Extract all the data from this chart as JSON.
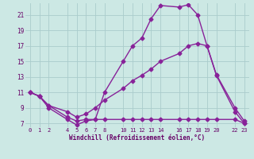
{
  "xlabel": "Windchill (Refroidissement éolien,°C)",
  "bg_color": "#cce8e4",
  "grid_color": "#aacccc",
  "line_color": "#882299",
  "xlim": [
    -0.5,
    23.5
  ],
  "ylim": [
    6.5,
    22.5
  ],
  "yticks": [
    7,
    9,
    11,
    13,
    15,
    17,
    19,
    21
  ],
  "xtick_labels": [
    "0",
    "1",
    "2",
    "4",
    "5",
    "6",
    "7",
    "8",
    "10",
    "11",
    "12",
    "13",
    "14",
    "16",
    "17",
    "18",
    "19",
    "20",
    "22",
    "23"
  ],
  "xtick_positions": [
    0,
    1,
    2,
    4,
    5,
    6,
    7,
    8,
    10,
    11,
    12,
    13,
    14,
    16,
    17,
    18,
    19,
    20,
    22,
    23
  ],
  "line1_x": [
    0,
    1,
    2,
    4,
    5,
    6,
    7,
    8,
    10,
    11,
    12,
    13,
    14,
    16,
    17,
    18,
    19,
    20,
    22,
    23
  ],
  "line1_y": [
    11.0,
    10.5,
    9.0,
    7.5,
    6.8,
    7.3,
    7.5,
    11.0,
    15.0,
    17.0,
    18.0,
    20.5,
    22.2,
    22.0,
    22.3,
    21.0,
    17.0,
    13.2,
    8.5,
    7.0
  ],
  "line2_x": [
    0,
    1,
    2,
    4,
    5,
    6,
    7,
    8,
    10,
    11,
    12,
    13,
    14,
    16,
    17,
    18,
    19,
    20,
    22,
    23
  ],
  "line2_y": [
    11.0,
    10.5,
    9.3,
    8.5,
    7.8,
    8.2,
    9.0,
    10.0,
    11.5,
    12.5,
    13.2,
    14.0,
    15.0,
    16.0,
    17.0,
    17.3,
    17.0,
    13.3,
    9.0,
    7.3
  ],
  "line3_x": [
    0,
    1,
    2,
    4,
    5,
    6,
    7,
    8,
    10,
    11,
    12,
    13,
    14,
    16,
    17,
    18,
    19,
    20,
    22,
    23
  ],
  "line3_y": [
    11.0,
    10.5,
    9.3,
    7.8,
    7.3,
    7.5,
    7.5,
    7.5,
    7.5,
    7.5,
    7.5,
    7.5,
    7.5,
    7.5,
    7.5,
    7.5,
    7.5,
    7.5,
    7.5,
    7.0
  ],
  "marker": "D",
  "markersize": 2.5,
  "linewidth": 1.0
}
